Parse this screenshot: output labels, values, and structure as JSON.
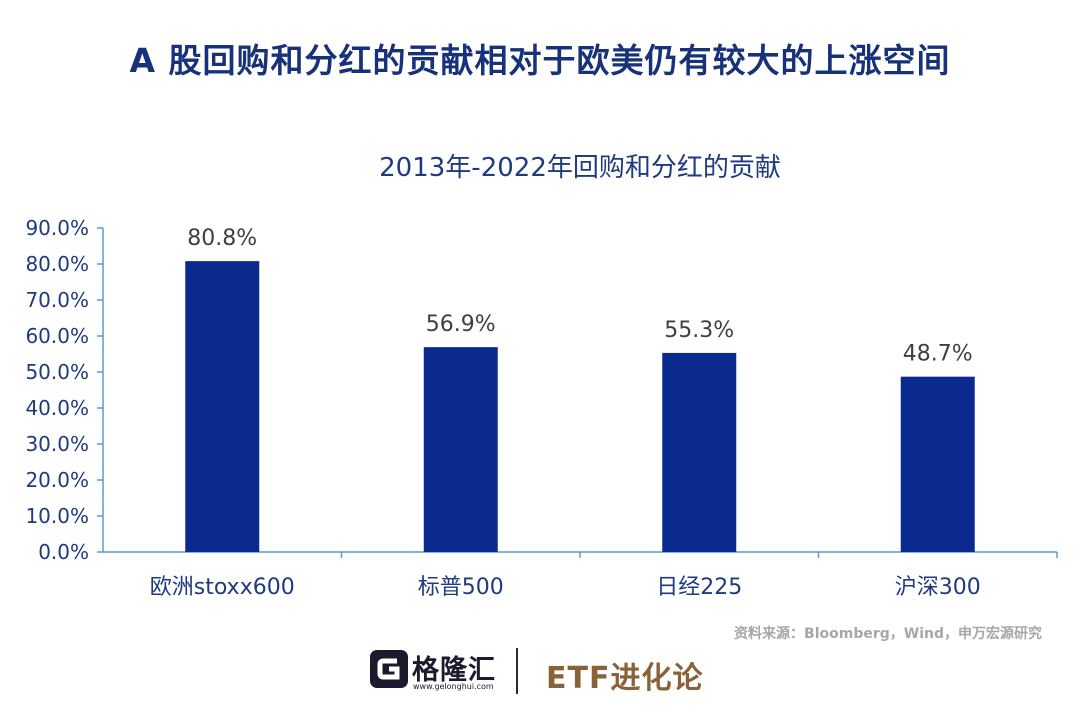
{
  "headline": "A 股回购和分红的贡献相对于欧美仍有较大的上涨空间",
  "chart_data": {
    "type": "bar",
    "title": "2013年-2022年回购和分红的贡献",
    "categories": [
      "欧洲stoxx600",
      "标普500",
      "日经225",
      "沪深300"
    ],
    "values": [
      80.8,
      56.9,
      55.3,
      48.7
    ],
    "value_labels": [
      "80.8%",
      "56.9%",
      "55.3%",
      "48.7%"
    ],
    "ylim": [
      0,
      90
    ],
    "yticks": [
      0,
      10,
      20,
      30,
      40,
      50,
      60,
      70,
      80,
      90
    ],
    "ytick_labels": [
      "0.0%",
      "10.0%",
      "20.0%",
      "30.0%",
      "40.0%",
      "50.0%",
      "60.0%",
      "70.0%",
      "80.0%",
      "90.0%"
    ],
    "xlabel": "",
    "ylabel": "",
    "grid": false,
    "bar_color": "#0a2a8f",
    "axis_color": "#5b9bd5"
  },
  "source": "资料来源：Bloomberg，Wind，申万宏源研究",
  "footer": {
    "logo_text": "格隆汇",
    "logo_url": "www.gelonghui.com",
    "brand": "ETF进化论"
  },
  "colors": {
    "headline": "#17327a",
    "brand": "#8a6238"
  }
}
